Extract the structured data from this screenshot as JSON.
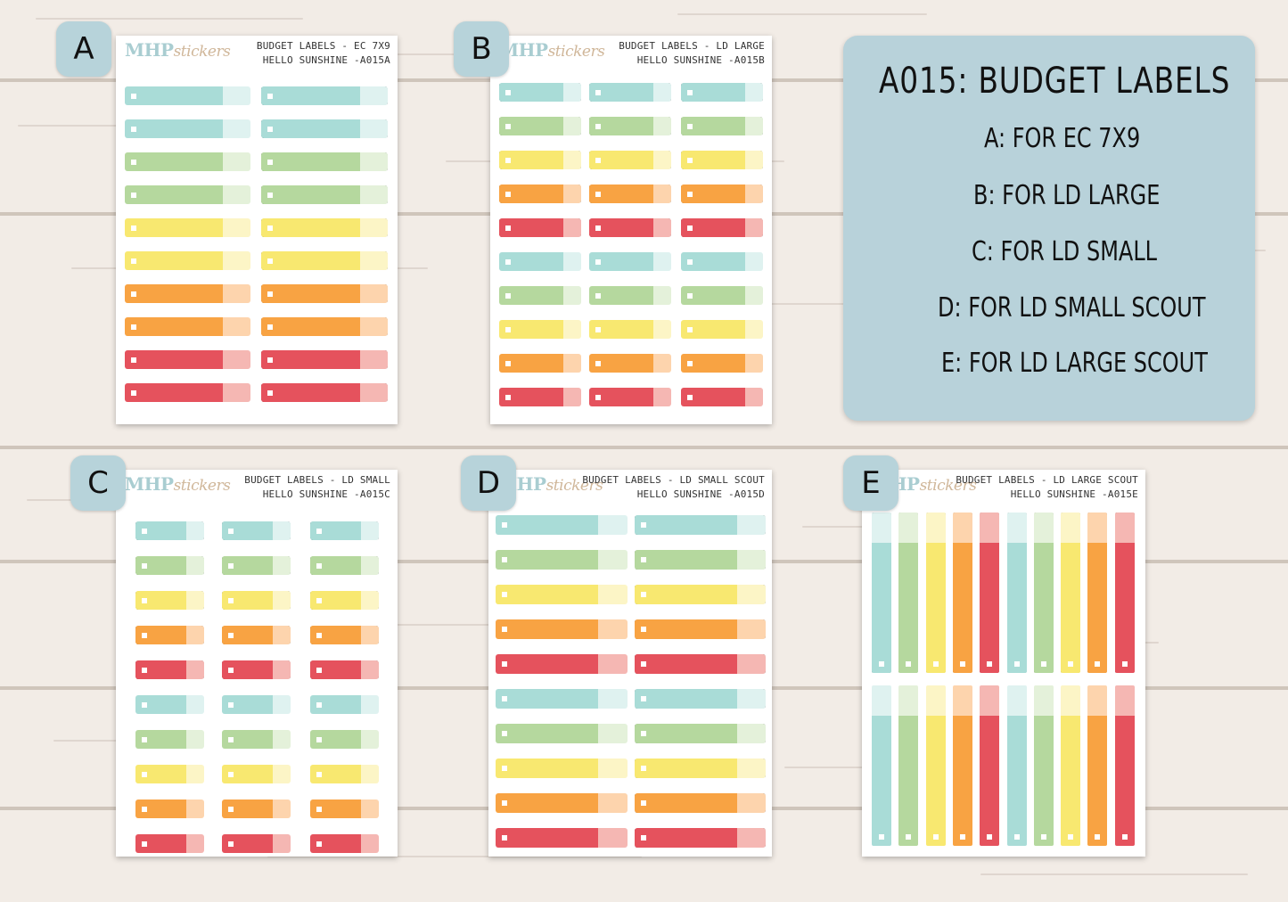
{
  "colors": {
    "teal": [
      "#a9dcd7",
      "#dff2f0"
    ],
    "green": [
      "#b5d89e",
      "#e4f1da"
    ],
    "yellow": [
      "#f8e870",
      "#fcf5c6"
    ],
    "orange": [
      "#f8a343",
      "#fdd4ad"
    ],
    "red": [
      "#e5525d",
      "#f5b7b3"
    ]
  },
  "info": {
    "title": "A015: BUDGET LABELS",
    "lines": [
      "A: FOR EC 7X9",
      "B: FOR LD LARGE",
      "C: FOR LD SMALL",
      "D: FOR LD SMALL SCOUT",
      "E: FOR LD LARGE SCOUT"
    ]
  },
  "sheets": [
    {
      "badge": "A",
      "logo_main": "MHP",
      "logo_script": "stickers",
      "title_line1": "BUDGET LABELS - EC 7X9",
      "title_line2": "HELLO SUNSHINE -A015A"
    },
    {
      "badge": "B",
      "logo_main": "MHP",
      "logo_script": "stickers",
      "title_line1": "BUDGET LABELS - LD LARGE",
      "title_line2": "HELLO SUNSHINE -A015B"
    },
    {
      "badge": "C",
      "logo_main": "MHP",
      "logo_script": "stickers",
      "title_line1": "BUDGET LABELS - LD SMALL",
      "title_line2": "HELLO SUNSHINE -A015C"
    },
    {
      "badge": "D",
      "logo_main": "MHP",
      "logo_script": "stickers",
      "title_line1": "BUDGET LABELS - LD SMALL SCOUT",
      "title_line2": "HELLO SUNSHINE -A015D"
    },
    {
      "badge": "E",
      "logo_main": "MHP",
      "logo_script": "stickers",
      "title_line1": "BUDGET LABELS - LD LARGE SCOUT",
      "title_line2": "HELLO SUNSHINE -A015E"
    }
  ]
}
